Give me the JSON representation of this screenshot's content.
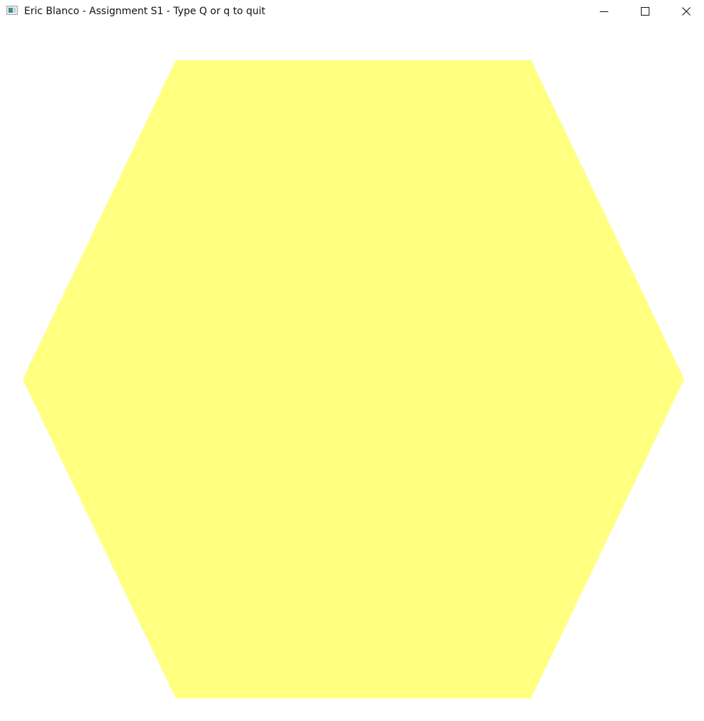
{
  "window": {
    "title": "Eric Blanco - Assignment S1 - Type Q or q to quit",
    "icon": "app-window-icon",
    "controls": {
      "minimize": "minimize-icon",
      "maximize": "maximize-icon",
      "close": "close-icon"
    }
  },
  "scene": {
    "shape": "hexagon",
    "fill_color": "#ffff80",
    "background_color": "#ffffff"
  }
}
